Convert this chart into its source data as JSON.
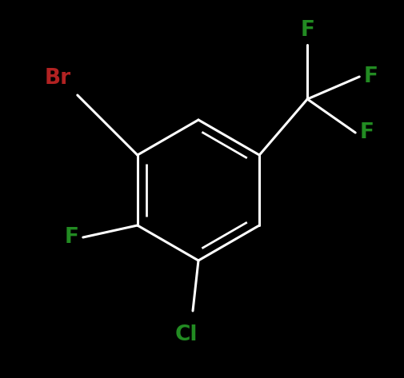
{
  "background_color": "#000000",
  "bond_color": "#ffffff",
  "bond_width": 2.2,
  "atom_labels": {
    "Br": {
      "text": "Br",
      "color": "#b22222",
      "fontsize": 19,
      "fontweight": "bold"
    },
    "F_top": {
      "text": "F",
      "color": "#228B22",
      "fontsize": 19,
      "fontweight": "bold"
    },
    "F_mid": {
      "text": "F",
      "color": "#228B22",
      "fontsize": 19,
      "fontweight": "bold"
    },
    "F_right": {
      "text": "F",
      "color": "#228B22",
      "fontsize": 19,
      "fontweight": "bold"
    },
    "F_left": {
      "text": "F",
      "color": "#228B22",
      "fontsize": 19,
      "fontweight": "bold"
    },
    "Cl": {
      "text": "Cl",
      "color": "#228B22",
      "fontsize": 19,
      "fontweight": "bold"
    }
  }
}
